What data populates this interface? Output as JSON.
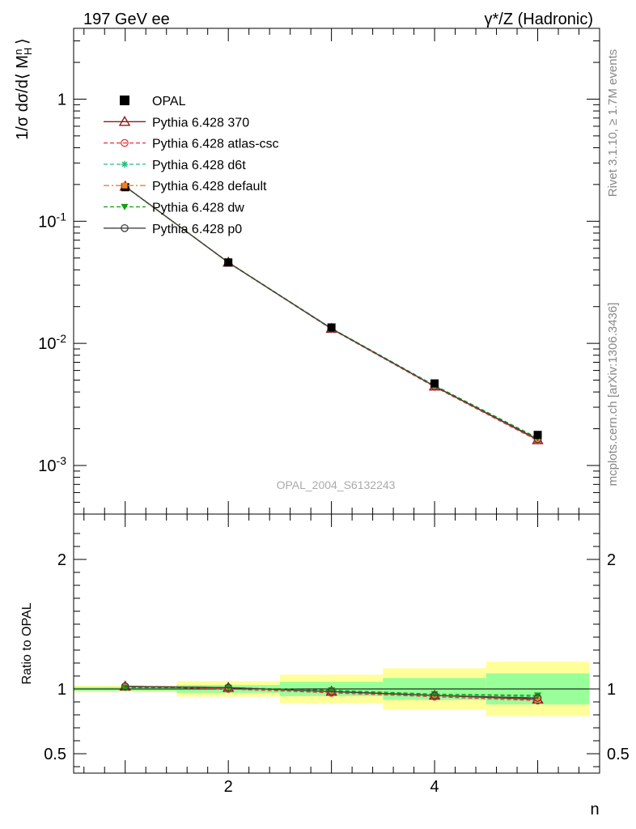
{
  "header": {
    "left": "197 GeV ee",
    "right": "γ*/Z (Hadronic)"
  },
  "side_labels": {
    "rivet": "Rivet 3.1.10, ≥ 1.7M events",
    "mcplots": "mcplots.cern.ch [arXiv:1306.3436]"
  },
  "watermark": "OPAL_2004_S6132243",
  "chart_data": [
    {
      "type": "line",
      "panel": "main",
      "ylabel": "1/σ dσ/d⟨ M_H^n ⟩",
      "yscale": "log",
      "ylim": [
        0.0004,
        3.8
      ],
      "xlim": [
        0.5,
        5.6
      ],
      "grid": false,
      "legend_position": "top-left",
      "y_tick_labels": [
        "10^-3",
        "10^-2",
        "10^-1",
        "1"
      ],
      "x": [
        1,
        2,
        3,
        4,
        5
      ],
      "reference": {
        "name": "OPAL",
        "values": [
          0.19,
          0.046,
          0.0135,
          0.0047,
          0.00178
        ],
        "bin_edges": [
          0.5,
          1.5,
          2.5,
          3.5,
          4.5,
          5.5
        ]
      },
      "series": [
        {
          "name": "Pythia 6.428 370",
          "color": "#8b1a1a",
          "dash": "solid",
          "marker": "triangle-open",
          "values": [
            0.193,
            0.046,
            0.0132,
            0.00445,
            0.00162
          ]
        },
        {
          "name": "Pythia 6.428 atlas-csc",
          "color": "#e8323c",
          "dash": "dashed",
          "marker": "circle-open",
          "values": [
            0.193,
            0.0458,
            0.0131,
            0.0044,
            0.0016
          ]
        },
        {
          "name": "Pythia 6.428 d6t",
          "color": "#20c080",
          "dash": "dashed",
          "marker": "star",
          "values": [
            0.192,
            0.046,
            0.0132,
            0.0045,
            0.00166
          ]
        },
        {
          "name": "Pythia 6.428 default",
          "color": "#f08020",
          "dash": "dashdot",
          "marker": "square",
          "values": [
            0.193,
            0.046,
            0.0132,
            0.00446,
            0.00164
          ]
        },
        {
          "name": "Pythia 6.428 dw",
          "color": "#10a010",
          "dash": "dashed",
          "marker": "triangle-down",
          "values": [
            0.192,
            0.0462,
            0.0133,
            0.00452,
            0.00168
          ]
        },
        {
          "name": "Pythia 6.428 p0",
          "color": "#404040",
          "dash": "solid",
          "marker": "circle-open",
          "values": [
            0.193,
            0.046,
            0.0132,
            0.00446,
            0.00164
          ]
        }
      ]
    },
    {
      "type": "line",
      "panel": "ratio",
      "xlabel": "n",
      "ylabel": "Ratio to OPAL",
      "ylim": [
        0.35,
        2.35
      ],
      "xlim": [
        0.5,
        5.6
      ],
      "y_tick_labels": [
        "0.5",
        "1",
        "2"
      ],
      "x_tick_labels": [
        "2",
        "4"
      ],
      "bands": {
        "bin_edges": [
          0.5,
          1.5,
          2.5,
          3.5,
          4.5,
          5.5
        ],
        "stat_half_width": [
          0.015,
          0.03,
          0.055,
          0.085,
          0.12
        ],
        "total_half_width": [
          0.025,
          0.06,
          0.11,
          0.16,
          0.21
        ]
      },
      "series": [
        {
          "name": "Pythia 6.428 370",
          "values": [
            1.02,
            1.01,
            0.98,
            0.95,
            0.92
          ]
        },
        {
          "name": "Pythia 6.428 atlas-csc",
          "values": [
            1.02,
            1.0,
            0.97,
            0.94,
            0.91
          ]
        },
        {
          "name": "Pythia 6.428 d6t",
          "values": [
            1.01,
            1.01,
            0.98,
            0.96,
            0.94
          ]
        },
        {
          "name": "Pythia 6.428 default",
          "values": [
            1.02,
            1.01,
            0.98,
            0.95,
            0.93
          ]
        },
        {
          "name": "Pythia 6.428 dw",
          "values": [
            1.01,
            1.01,
            0.99,
            0.96,
            0.95
          ]
        },
        {
          "name": "Pythia 6.428 p0",
          "values": [
            1.02,
            1.01,
            0.98,
            0.95,
            0.93
          ]
        }
      ]
    }
  ]
}
